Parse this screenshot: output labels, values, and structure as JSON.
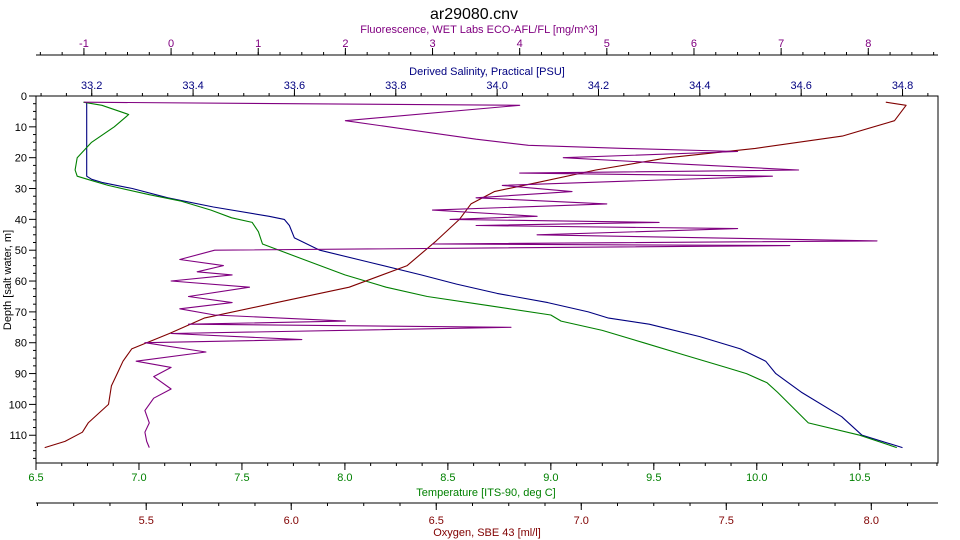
{
  "chart_data": {
    "type": "line",
    "title": "ar29080.cnv",
    "y_axis": {
      "label": "Depth [salt water, m]",
      "range": [
        0,
        119
      ],
      "ticks": [
        0,
        10,
        20,
        30,
        40,
        50,
        60,
        70,
        80,
        90,
        100,
        110
      ],
      "inverted": true,
      "color": "#000000"
    },
    "x_axes": [
      {
        "id": "fluorescence",
        "label": "Fluorescence, WET Labs ECO-AFL/FL [mg/m^3]",
        "position": "top-outer",
        "range": [
          -1.55,
          8.8
        ],
        "ticks": [
          -1,
          0,
          1,
          2,
          3,
          4,
          5,
          6,
          7,
          8
        ],
        "color": "#800080"
      },
      {
        "id": "salinity",
        "label": "Derived Salinity, Practical [PSU]",
        "position": "top-inner",
        "range": [
          33.09,
          34.87
        ],
        "ticks": [
          "33.2",
          "33.4",
          "33.6",
          "33.8",
          "34.0",
          "34.2",
          "34.4",
          "34.6",
          "34.8"
        ],
        "color": "#000080"
      },
      {
        "id": "temperature",
        "label": "Temperature [ITS-90, deg C]",
        "position": "bottom-inner",
        "range": [
          6.5,
          10.88
        ],
        "ticks": [
          "6.5",
          "7.0",
          "7.5",
          "8.0",
          "8.5",
          "9.0",
          "9.5",
          "10.0",
          "10.5"
        ],
        "color": "#008000"
      },
      {
        "id": "oxygen",
        "label": "Oxygen, SBE 43 [ml/l]",
        "position": "bottom-outer",
        "range": [
          5.12,
          8.23
        ],
        "ticks": [
          "5.5",
          "6.0",
          "6.5",
          "7.0",
          "7.5",
          "8.0"
        ],
        "color": "#800000"
      }
    ],
    "series": [
      {
        "name": "Derived Salinity, Practical [PSU]",
        "axis": "salinity",
        "color": "#000080",
        "x": [
          33.19,
          33.19,
          33.19,
          33.19,
          33.19,
          33.19,
          33.19,
          33.19,
          33.2,
          33.22,
          33.28,
          33.35,
          33.44,
          33.55,
          33.58,
          33.59,
          33.6,
          33.65,
          33.75,
          33.85,
          33.92,
          34.0,
          34.1,
          34.18,
          34.22,
          34.3,
          34.4,
          34.48,
          34.53,
          34.55,
          34.6,
          34.68,
          34.72,
          34.8
        ],
        "y": [
          2,
          5,
          8,
          10,
          15,
          20,
          24,
          26,
          27,
          28,
          30,
          33,
          36,
          39,
          40,
          42,
          46,
          50,
          54,
          58,
          61,
          64,
          67,
          70,
          72,
          74,
          78,
          82,
          86,
          90,
          96,
          104,
          110,
          114
        ]
      },
      {
        "name": "Temperature [ITS-90, deg C]",
        "axis": "temperature",
        "color": "#008000",
        "x": [
          6.73,
          6.82,
          6.95,
          6.88,
          6.77,
          6.7,
          6.69,
          6.7,
          6.75,
          6.85,
          7.05,
          7.2,
          7.35,
          7.45,
          7.55,
          7.58,
          7.6,
          7.8,
          8.0,
          8.2,
          8.4,
          8.7,
          9.0,
          9.05,
          9.25,
          9.45,
          9.65,
          9.85,
          9.95,
          10.05,
          10.1,
          10.25,
          10.5,
          10.68
        ],
        "y": [
          2,
          3,
          6,
          10,
          15,
          20,
          24,
          26,
          27,
          29,
          32,
          34,
          37,
          39.5,
          41,
          44,
          48,
          53,
          58,
          62,
          65,
          68,
          71,
          73,
          76,
          80,
          84,
          88,
          90,
          93,
          96,
          106,
          110,
          114
        ]
      },
      {
        "name": "Oxygen, SBE 43 [ml/l]",
        "axis": "oxygen",
        "color": "#800000",
        "x": [
          8.05,
          8.12,
          8.08,
          7.9,
          7.6,
          7.3,
          7.05,
          6.85,
          6.7,
          6.62,
          6.58,
          6.5,
          6.4,
          6.2,
          5.95,
          5.7,
          5.58,
          5.45,
          5.42,
          5.4,
          5.38,
          5.37,
          5.3,
          5.28,
          5.22,
          5.15
        ],
        "y": [
          2,
          3,
          8,
          13,
          17,
          20,
          24,
          28,
          31,
          35,
          40,
          47,
          55,
          62,
          67,
          72,
          77,
          82,
          86,
          90,
          94,
          100,
          106,
          109,
          112,
          114
        ]
      },
      {
        "name": "Fluorescence, WET Labs ECO-AFL/FL [mg/m^3]",
        "axis": "fluorescence",
        "color": "#800080",
        "x": [
          -1.0,
          4.0,
          2.0,
          3.5,
          4.1,
          5.2,
          6.5,
          4.5,
          5.8,
          7.2,
          4.0,
          6.9,
          3.8,
          4.6,
          3.5,
          5.0,
          3.0,
          4.2,
          3.2,
          5.6,
          3.5,
          6.5,
          4.2,
          8.1,
          3.0,
          7.1,
          0.5,
          0.1,
          0.6,
          0.3,
          0.7,
          0.0,
          0.9,
          0.2,
          0.7,
          0.1,
          0.5,
          2.0,
          0.2,
          3.9,
          0.0,
          1.5,
          -0.3,
          0.4,
          -0.4,
          0.0,
          -0.2,
          0.0,
          -0.2,
          -0.3,
          -0.25,
          -0.3,
          -0.28,
          -0.25
        ],
        "y": [
          2,
          3,
          8,
          14,
          16,
          17,
          18,
          20,
          22,
          24,
          25,
          26,
          29,
          31,
          33,
          35,
          37,
          39,
          40,
          41,
          42,
          43,
          45,
          47,
          48,
          48.5,
          50,
          53,
          55,
          57,
          58,
          60,
          62,
          65,
          67,
          69,
          71,
          73,
          74,
          75,
          77,
          79,
          80,
          83,
          86,
          88,
          91,
          95,
          98,
          102,
          106,
          109,
          112,
          114
        ]
      }
    ]
  }
}
